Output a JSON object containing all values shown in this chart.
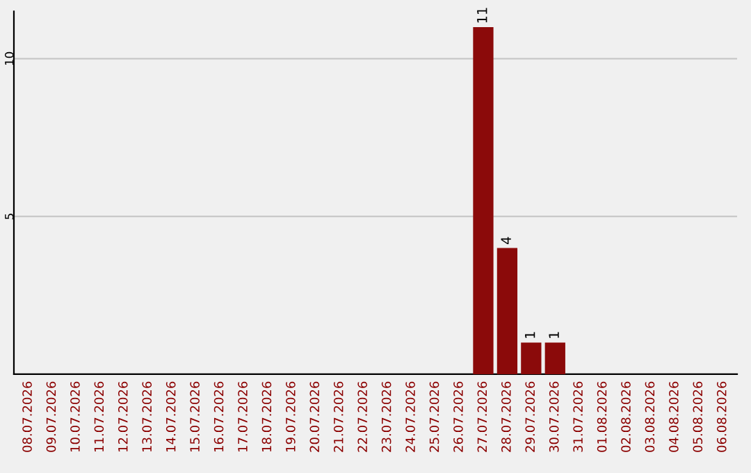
{
  "chart_data": {
    "type": "bar",
    "categories": [
      "08.07.2026",
      "09.07.2026",
      "10.07.2026",
      "11.07.2026",
      "12.07.2026",
      "13.07.2026",
      "14.07.2026",
      "15.07.2026",
      "16.07.2026",
      "17.07.2026",
      "18.07.2026",
      "19.07.2026",
      "20.07.2026",
      "21.07.2026",
      "22.07.2026",
      "23.07.2026",
      "24.07.2026",
      "25.07.2026",
      "26.07.2026",
      "27.07.2026",
      "28.07.2026",
      "29.07.2026",
      "30.07.2026",
      "31.07.2026",
      "01.08.2026",
      "02.08.2026",
      "03.08.2026",
      "04.08.2026",
      "05.08.2026",
      "06.08.2026"
    ],
    "values": [
      0,
      0,
      0,
      0,
      0,
      0,
      0,
      0,
      0,
      0,
      0,
      0,
      0,
      0,
      0,
      0,
      0,
      0,
      0,
      11,
      4,
      1,
      1,
      0,
      0,
      0,
      0,
      0,
      0,
      0
    ],
    "color": "#8b0a0a",
    "ylim": [
      0,
      11.5
    ],
    "yticks": [
      5,
      10
    ],
    "grid": "y",
    "value_labels": [
      null,
      null,
      null,
      null,
      null,
      null,
      null,
      null,
      null,
      null,
      null,
      null,
      null,
      null,
      null,
      null,
      null,
      null,
      null,
      "11",
      "4",
      "1",
      "1",
      null,
      null,
      null,
      null,
      null,
      null,
      null
    ]
  }
}
